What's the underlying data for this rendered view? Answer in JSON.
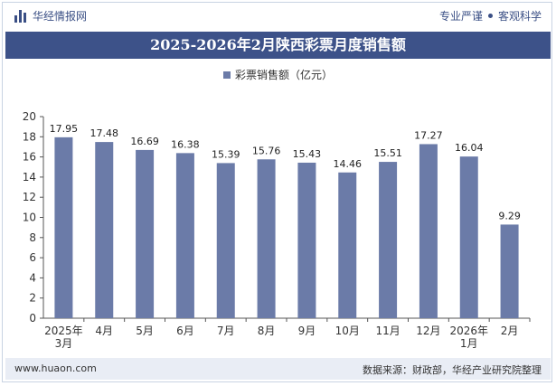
{
  "header": {
    "brand": "华经情报网",
    "tagline_left": "专业严谨",
    "tagline_right": "客观科学"
  },
  "footer": {
    "website": "www.huaon.com",
    "source": "数据来源：财政部，华经产业研究院整理"
  },
  "colors": {
    "bar": "#6b7ba8",
    "title_bg": "#3d5289",
    "brand": "#3a4f85"
  },
  "chart_data": {
    "type": "bar",
    "title": "2025-2026年2月陕西彩票月度销售额",
    "categories": [
      "2025年\n3月",
      "4月",
      "5月",
      "6月",
      "7月",
      "8月",
      "9月",
      "10月",
      "11月",
      "12月",
      "2026年\n1月",
      "2月"
    ],
    "series": [
      {
        "name": "彩票销售额（亿元）",
        "values": [
          17.95,
          17.48,
          16.69,
          16.38,
          15.39,
          15.76,
          15.43,
          14.46,
          15.51,
          17.27,
          16.04,
          9.29
        ]
      }
    ],
    "ylim": [
      0,
      20
    ],
    "yticks": [
      0,
      2,
      4,
      6,
      8,
      10,
      12,
      14,
      16,
      18,
      20
    ],
    "grid": false,
    "legend": "top-center"
  }
}
